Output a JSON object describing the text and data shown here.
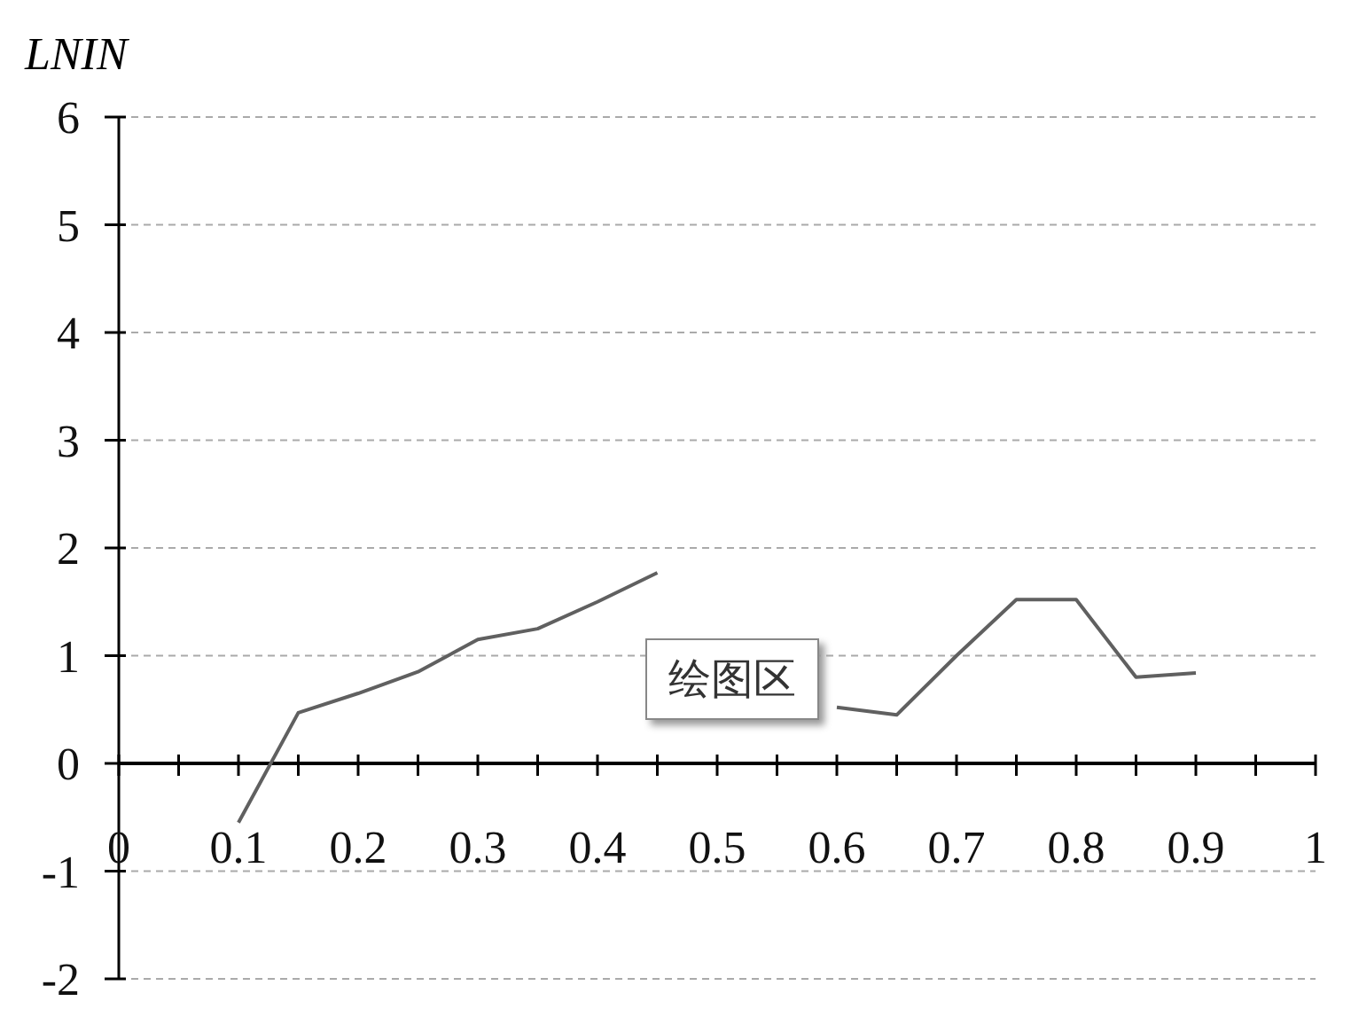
{
  "chart_data": {
    "type": "line",
    "ylabel": "LNIN",
    "annotations": [
      "绘图区"
    ],
    "x": [
      0.1,
      0.15,
      0.2,
      0.25,
      0.3,
      0.35,
      0.4,
      0.45,
      0.5,
      0.55,
      0.6,
      0.65,
      0.7,
      0.75,
      0.8,
      0.85,
      0.9
    ],
    "series": [
      {
        "color": "#606060",
        "values": [
          -0.55,
          0.47,
          0.65,
          0.85,
          1.15,
          1.25,
          1.5,
          1.77,
          null,
          null,
          0.52,
          0.45,
          1.0,
          1.52,
          1.52,
          0.8,
          0.84
        ]
      }
    ],
    "xlim": [
      0,
      1
    ],
    "xticks": [
      0,
      {
        "value": 0.05,
        "label": null
      },
      0.1,
      {
        "value": 0.15,
        "label": null
      },
      0.2,
      {
        "value": 0.25,
        "label": null
      },
      0.3,
      {
        "value": 0.35,
        "label": null
      },
      0.4,
      {
        "value": 0.45,
        "label": null
      },
      0.5,
      {
        "value": 0.55,
        "label": null
      },
      0.6,
      {
        "value": 0.65,
        "label": null
      },
      0.7,
      {
        "value": 0.75,
        "label": null
      },
      0.8,
      {
        "value": 0.85,
        "label": null
      },
      0.9,
      {
        "value": 0.95,
        "label": null
      },
      1
    ],
    "ylim": [
      -2,
      6
    ],
    "yticks": [
      -2,
      -1,
      0,
      1,
      2,
      3,
      4,
      5,
      6
    ],
    "grid": "y",
    "line_style": "solid"
  }
}
